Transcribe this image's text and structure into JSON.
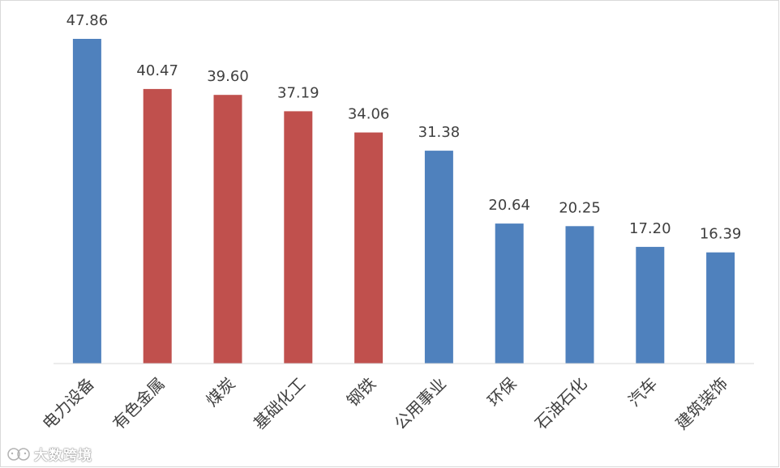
{
  "chart_data": {
    "type": "bar",
    "categories": [
      "电力设备",
      "有色金属",
      "煤炭",
      "基础化工",
      "钢铁",
      "公用事业",
      "环保",
      "石油石化",
      "汽车",
      "建筑装饰"
    ],
    "values": [
      47.86,
      40.47,
      39.6,
      37.19,
      34.06,
      31.38,
      20.64,
      20.25,
      17.2,
      16.39
    ],
    "value_labels": [
      "47.86",
      "40.47",
      "39.60",
      "37.19",
      "34.06",
      "31.38",
      "20.64",
      "20.25",
      "17.20",
      "16.39"
    ],
    "bar_colors": [
      "#4f81bd",
      "#c0504d",
      "#c0504d",
      "#c0504d",
      "#c0504d",
      "#4f81bd",
      "#4f81bd",
      "#4f81bd",
      "#4f81bd",
      "#4f81bd"
    ],
    "ylim": [
      0,
      47.86
    ],
    "grid": false,
    "legend": "none",
    "category_label_rotation": "-45deg"
  },
  "watermark": {
    "text": "大数跨境",
    "icon": "logo-face-icon"
  },
  "colors": {
    "blue": "#4f81bd",
    "red": "#c0504d",
    "text": "#404040",
    "border": "#d9d9d9"
  }
}
